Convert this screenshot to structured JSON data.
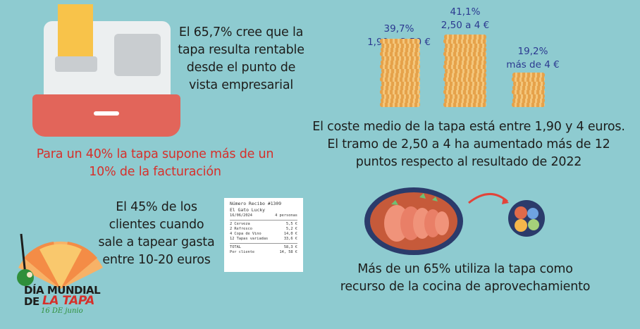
{
  "register": {
    "caption": "El 65,7% cree que la tapa resulta rentable desde el punto de vista empresarial",
    "lines": [
      "El 65,7% cree que la",
      "tapa resulta rentable",
      "desde el punto de",
      "vista empresarial"
    ]
  },
  "revenue": {
    "lines": [
      "Para un 40% la tapa supone más de un",
      "10% de la facturación"
    ]
  },
  "coins": {
    "stacks": [
      {
        "percent": "39,7%",
        "range": "1,90 a 2,50 €",
        "value": 39.7
      },
      {
        "percent": "41,1%",
        "range": "2,50 a 4 €",
        "value": 41.1
      },
      {
        "percent": "19,2%",
        "range": "más de 4 €",
        "value": 19.2
      }
    ],
    "lines": [
      "El coste medio de la tapa está entre 1,90 y 4 euros.",
      "El tramo de 2,50 a 4 ha aumentado más de 12",
      "puntos respecto al resultado de 2022"
    ]
  },
  "spend": {
    "lines": [
      "El 45% de los",
      "clientes cuando",
      "sale a tapear gasta",
      "entre 10-20 euros"
    ]
  },
  "receipt": {
    "title": "Número Recibo #1309",
    "shop": "El Gato Lucky",
    "date": "16/06/2024",
    "people": "4 personas",
    "items": [
      {
        "label": "2 Cerveza",
        "price": "5,5 €"
      },
      {
        "label": "2 Refresco",
        "price": "5,2 €"
      },
      {
        "label": "4 Copa de Vino",
        "price": "14,0 €"
      },
      {
        "label": "12 Tapas variadas",
        "price": "33,6 €"
      }
    ],
    "total_label": "TOTAL",
    "total": "58,3 €",
    "per_label": "Por cliente",
    "per": "14, 58 €"
  },
  "kitchen": {
    "lines": [
      "Más de un 65% utiliza la tapa como",
      "recurso de la cocina de aprovechamiento"
    ]
  },
  "logo": {
    "line1": "DÍA MUNDIAL",
    "line2a": "DE",
    "line2b": "LA TAPA",
    "date": "16 DE junio"
  },
  "colors": {
    "background": "#8ecbd0",
    "accent_red": "#d6302b",
    "stat_blue": "#2b3990",
    "coin": "#e6a24a"
  }
}
